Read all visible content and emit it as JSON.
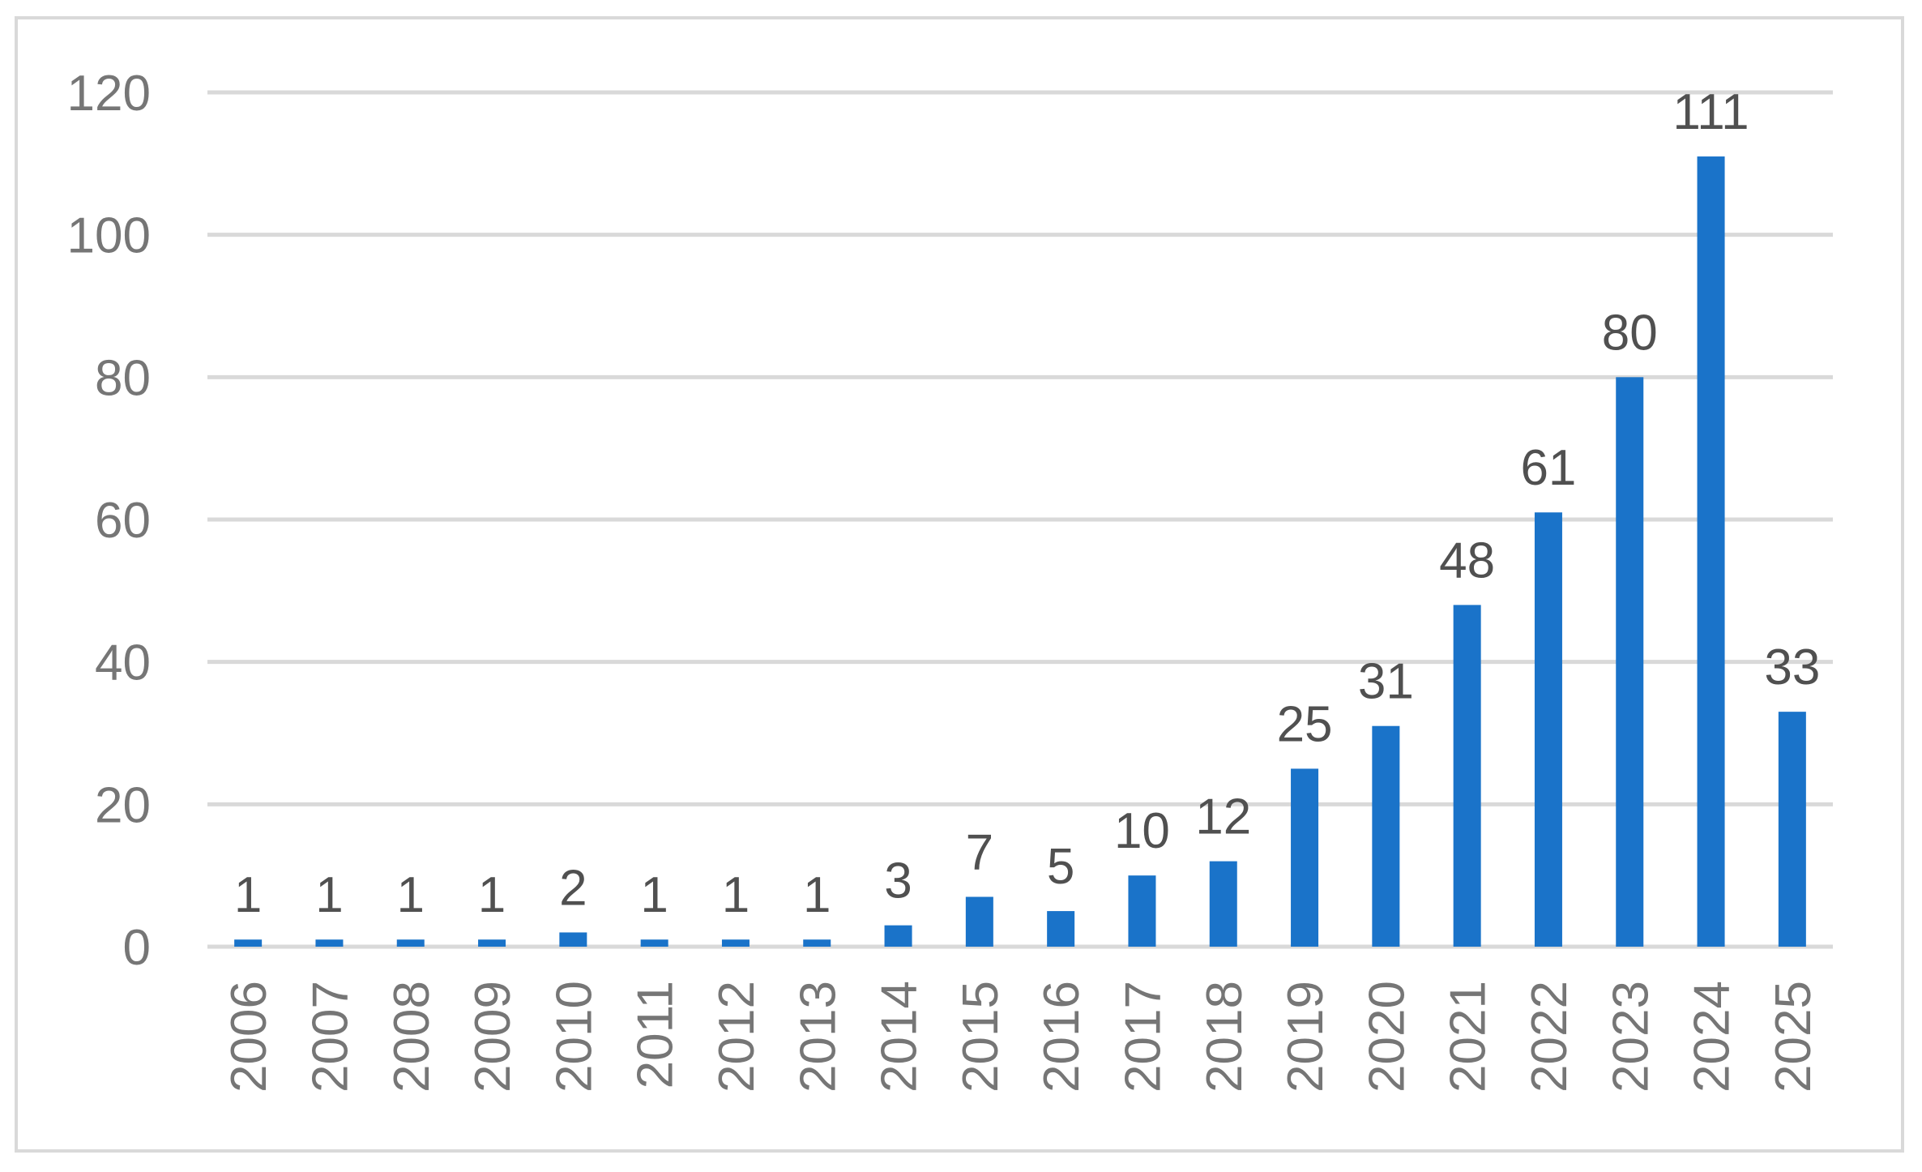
{
  "chart_data": {
    "type": "bar",
    "categories": [
      "2006",
      "2007",
      "2008",
      "2009",
      "2010",
      "2011",
      "2012",
      "2013",
      "2014",
      "2015",
      "2016",
      "2017",
      "2018",
      "2019",
      "2020",
      "2021",
      "2022",
      "2023",
      "2024",
      "2025"
    ],
    "values": [
      1,
      1,
      1,
      1,
      2,
      1,
      1,
      1,
      3,
      7,
      5,
      10,
      12,
      25,
      31,
      48,
      61,
      80,
      111,
      33
    ],
    "data_labels": [
      "1",
      "1",
      "1",
      "1",
      "2",
      "1",
      "1",
      "1",
      "3",
      "7",
      "5",
      "10",
      "12",
      "25",
      "31",
      "48",
      "61",
      "80",
      "111",
      "33"
    ],
    "title": "",
    "xlabel": "",
    "ylabel": "",
    "ylim": [
      0,
      120
    ],
    "yticks": [
      "0",
      "20",
      "40",
      "60",
      "80",
      "100",
      "120"
    ],
    "ytick_values": [
      0,
      20,
      40,
      60,
      80,
      100,
      120
    ],
    "grid": true,
    "legend": "none",
    "bar_color": "#1a73c9",
    "grid_color": "#d9d9d9",
    "tick_label_color": "#767676",
    "data_label_color": "#505050",
    "x_tick_rotation": "vertical"
  }
}
